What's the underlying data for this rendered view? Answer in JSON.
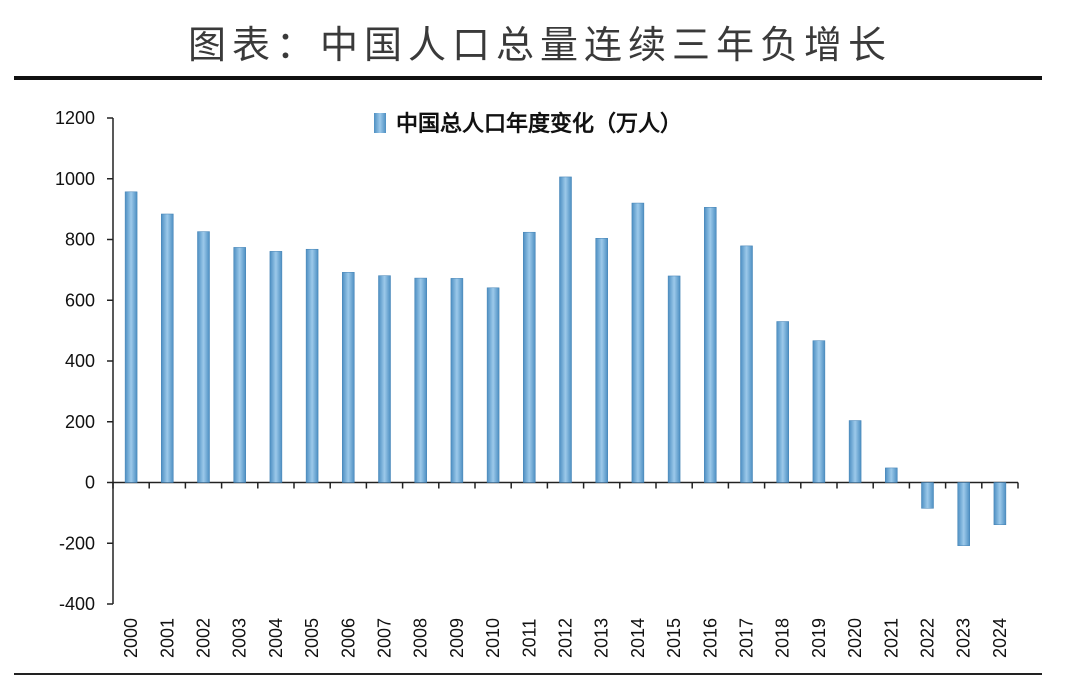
{
  "page": {
    "title": "图表：中国人口总量连续三年负增长"
  },
  "chart_data": {
    "type": "bar",
    "categories": [
      "2000",
      "2001",
      "2002",
      "2003",
      "2004",
      "2005",
      "2006",
      "2007",
      "2008",
      "2009",
      "2010",
      "2011",
      "2012",
      "2013",
      "2014",
      "2015",
      "2016",
      "2017",
      "2018",
      "2019",
      "2020",
      "2021",
      "2022",
      "2023",
      "2024"
    ],
    "series": [
      {
        "name": "中国总人口年度变化（万人）",
        "values": [
          957,
          884,
          826,
          774,
          761,
          768,
          692,
          681,
          673,
          672,
          641,
          824,
          1006,
          804,
          920,
          680,
          906,
          779,
          530,
          467,
          204,
          48,
          -85,
          -208,
          -139
        ],
        "color": "#6aaad6"
      }
    ],
    "xlabel": "",
    "ylabel": "",
    "ylim": [
      -400,
      1200
    ],
    "yticks": [
      -400,
      -200,
      0,
      200,
      400,
      600,
      800,
      1000,
      1200
    ],
    "grid": false,
    "legend": "top-center"
  }
}
